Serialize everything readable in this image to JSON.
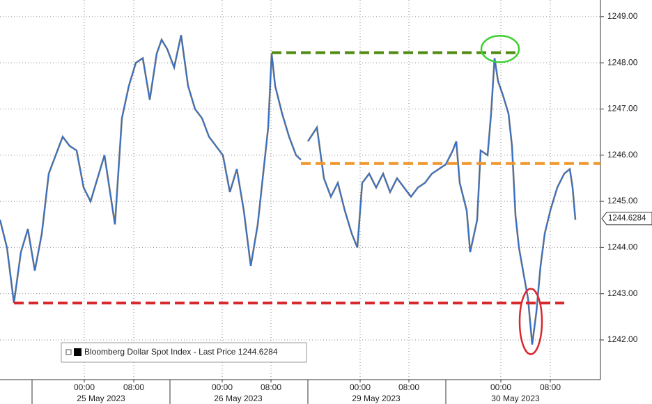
{
  "chart_data": {
    "type": "line",
    "series": [
      {
        "name": "Bloomberg Dollar Spot Index - Last Price 1244.6284",
        "color": "#2f6fd0",
        "x": [
          0,
          10,
          20,
          30,
          40,
          50,
          60,
          70,
          80,
          90,
          100,
          110,
          120,
          130,
          140,
          150,
          160,
          165,
          175,
          185,
          195,
          205,
          215,
          225,
          232,
          240,
          250,
          260,
          270,
          280,
          290,
          300,
          310,
          320,
          330,
          340,
          350,
          360,
          370,
          380,
          385,
          390,
          395,
          405,
          415,
          425,
          432,
          437,
          442,
          455,
          465,
          475,
          485,
          495,
          505,
          513,
          520,
          530,
          540,
          550,
          560,
          570,
          580,
          590,
          600,
          610,
          620,
          630,
          640,
          650,
          655,
          660,
          670,
          675,
          685,
          690,
          700,
          705,
          710,
          715,
          722,
          730,
          735,
          740,
          745,
          752,
          758,
          764,
          770,
          776,
          782,
          790,
          800,
          810,
          818,
          822,
          826
        ],
        "values": [
          1244.6,
          1244.0,
          1242.8,
          1243.9,
          1244.4,
          1243.5,
          1244.3,
          1245.6,
          1246.0,
          1246.4,
          1246.2,
          1246.1,
          1245.3,
          1245.0,
          1245.5,
          1246.0,
          1245.0,
          1244.5,
          1246.8,
          1247.5,
          1248.0,
          1248.1,
          1247.2,
          1248.2,
          1248.5,
          1248.3,
          1247.9,
          1248.6,
          1247.5,
          1247.0,
          1246.8,
          1246.4,
          1246.2,
          1246.0,
          1245.2,
          1245.7,
          1244.8,
          1243.6,
          1244.5,
          1245.9,
          1246.6,
          1248.2,
          1247.5,
          1246.9,
          1246.4,
          1246.0,
          1245.9,
          null,
          1246.3,
          1246.6,
          1245.5,
          1245.1,
          1245.4,
          1244.8,
          1244.3,
          1244.0,
          1245.4,
          1245.6,
          1245.3,
          1245.6,
          1245.2,
          1245.5,
          1245.3,
          1245.1,
          1245.3,
          1245.4,
          1245.6,
          1245.7,
          1245.8,
          1246.1,
          1246.3,
          1245.4,
          1244.8,
          1243.9,
          1244.6,
          1246.1,
          1246.0,
          1246.9,
          1248.1,
          1247.6,
          1247.3,
          1246.9,
          1246.2,
          1244.7,
          1244.0,
          1243.4,
          1242.9,
          1241.9,
          1242.6,
          1243.6,
          1244.3,
          1244.8,
          1245.3,
          1245.6,
          1245.7,
          1245.3,
          1244.6
        ]
      }
    ],
    "xlim": [
      0,
      862
    ],
    "xticks": [
      {
        "value": 121,
        "label": "00:00"
      },
      {
        "value": 192,
        "label": "08:00"
      },
      {
        "value": 319,
        "label": "00:00"
      },
      {
        "value": 389,
        "label": "08:00"
      },
      {
        "value": 517,
        "label": "00:00"
      },
      {
        "value": 587,
        "label": "08:00"
      },
      {
        "value": 719,
        "label": "00:00"
      },
      {
        "value": 790,
        "label": "08:00"
      }
    ],
    "date_labels": [
      {
        "value": 145,
        "label": "25 May 2023"
      },
      {
        "value": 342,
        "label": "26 May 2023"
      },
      {
        "value": 540,
        "label": "29 May 2023"
      },
      {
        "value": 740,
        "label": "30 May 2023"
      }
    ],
    "ylim": [
      1241.14,
      1249.36
    ],
    "yticks": [
      {
        "value": 1242,
        "label": "1242.00"
      },
      {
        "value": 1243,
        "label": "1243.00"
      },
      {
        "value": 1244,
        "label": "1244.00"
      },
      {
        "value": 1245,
        "label": "1245.00"
      },
      {
        "value": 1246,
        "label": "1246.00"
      },
      {
        "value": 1247,
        "label": "1247.00"
      },
      {
        "value": 1248,
        "label": "1248.00"
      },
      {
        "value": 1249,
        "label": "1249.00"
      }
    ],
    "last_price": 1244.6284,
    "reference_lines": [
      {
        "y": 1248.22,
        "x": [
          390,
          745
        ],
        "color": "#4f8a10"
      },
      {
        "y": 1245.82,
        "x": [
          432,
          862
        ],
        "color": "#f0962a"
      },
      {
        "y": 1242.8,
        "x": [
          20,
          810
        ],
        "color": "#d9272e"
      }
    ],
    "highlights": [
      {
        "x": 718,
        "y": 1248.3,
        "color": "#3dd12e"
      },
      {
        "x": 762,
        "y": 1242.4,
        "color": "#d9272e"
      }
    ],
    "grid": true,
    "legend": "bottom-left"
  }
}
